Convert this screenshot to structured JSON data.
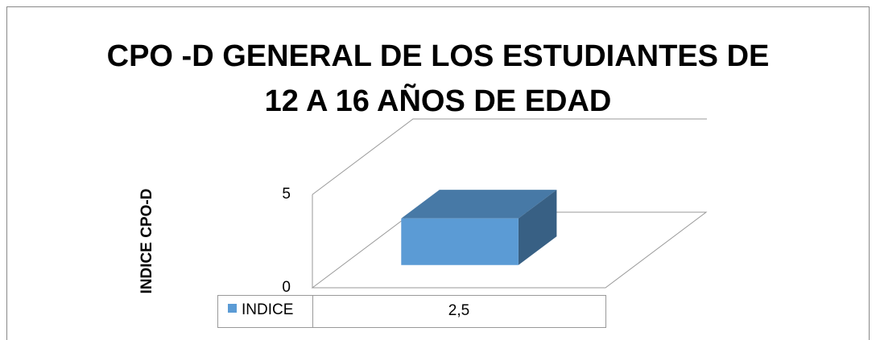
{
  "chart_data": {
    "type": "bar3d",
    "title": "CPO -D GENERAL DE LOS ESTUDIANTES DE 12 A 16 AÑOS DE EDAD",
    "y_label": "INDICE CPO-D",
    "categories": [
      null
    ],
    "series": [
      {
        "name": "INDICE",
        "color": "#5b9bd5",
        "values": [
          2.5
        ],
        "value_labels": [
          "2,5"
        ]
      }
    ],
    "ylim": [
      0,
      5
    ],
    "yticks": [
      0,
      5
    ],
    "grid": true,
    "data_table": true
  }
}
